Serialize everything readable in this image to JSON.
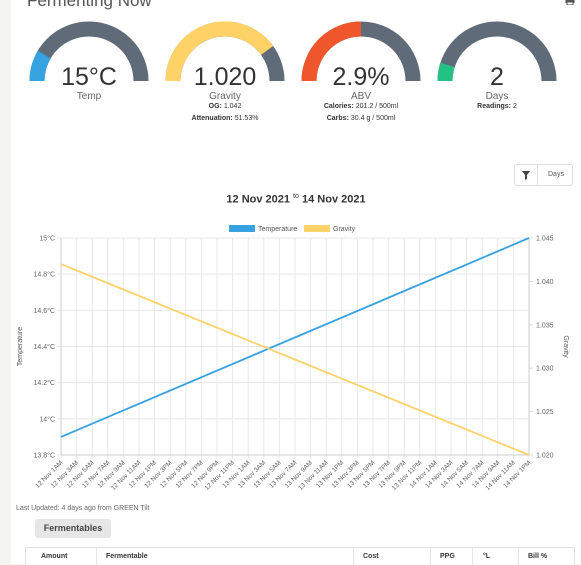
{
  "page": {
    "title": "Fermenting Now"
  },
  "gauges": [
    {
      "value": "15°C",
      "label": "Temp",
      "fraction": 0.17,
      "color": "#36a2e0",
      "track": "#5f6b78"
    },
    {
      "value": "1.020",
      "label": "Gravity",
      "fraction": 0.8,
      "color": "#ffd268",
      "track": "#5f6b78",
      "og_label": "OG:",
      "og": "1.042",
      "attenuation_label": "Attenuation:",
      "attenuation": "51.53%"
    },
    {
      "value": "2.9%",
      "label": "ABV",
      "fraction": 0.5,
      "color": "#f0562c",
      "track": "#5f6b78",
      "calories_label": "Calories:",
      "calories": "201.2 / 500ml",
      "carbs_label": "Carbs:",
      "carbs": "30.4 g / 500ml"
    },
    {
      "value": "2",
      "label": "Days",
      "fraction": 0.1,
      "color": "#23c184",
      "track": "#5f6b78",
      "readings_label": "Readings:",
      "readings": "2"
    }
  ],
  "filter": {
    "label": "Days",
    "icon": "filter-icon"
  },
  "range": {
    "start": "12 Nov 2021",
    "to": "to",
    "end": "14 Nov 2021"
  },
  "chart_data": {
    "type": "line",
    "x": [
      "12 Nov 1AM",
      "12 Nov 3AM",
      "12 Nov 5AM",
      "12 Nov 7AM",
      "12 Nov 9AM",
      "12 Nov 11AM",
      "12 Nov 1PM",
      "12 Nov 3PM",
      "12 Nov 5PM",
      "12 Nov 7PM",
      "12 Nov 9PM",
      "12 Nov 11PM",
      "13 Nov 1AM",
      "13 Nov 3AM",
      "13 Nov 5AM",
      "13 Nov 7AM",
      "13 Nov 9AM",
      "13 Nov 11AM",
      "13 Nov 1PM",
      "13 Nov 3PM",
      "13 Nov 5PM",
      "13 Nov 7PM",
      "13 Nov 9PM",
      "13 Nov 11PM",
      "14 Nov 1AM",
      "14 Nov 3AM",
      "14 Nov 5AM",
      "14 Nov 7AM",
      "14 Nov 9AM",
      "14 Nov 11AM",
      "14 Nov 1PM"
    ],
    "series": [
      {
        "name": "Temperature",
        "color": "#36a2e0",
        "axis": "left",
        "start": 13.9,
        "end": 15.0
      },
      {
        "name": "Gravity",
        "color": "#ffd268",
        "axis": "right",
        "start": 1.042,
        "end": 1.02
      }
    ],
    "y_left": {
      "label": "Temperature",
      "ticks": [
        "15°C",
        "14.8°C",
        "14.6°C",
        "14.4°C",
        "14.2°C",
        "14°C",
        "13.8°C"
      ],
      "min": 13.8,
      "max": 15.0
    },
    "y_right": {
      "label": "Gravity",
      "ticks": [
        "1.045",
        "1.040",
        "1.035",
        "1.030",
        "1.025",
        "1.020"
      ],
      "min": 1.02,
      "max": 1.045
    },
    "legend": "top-center",
    "grid": true
  },
  "footer": {
    "last_updated": "Last Updated: 4 days ago from GREEN Tilt"
  },
  "fermentables": {
    "tab": "Fermentables",
    "columns": [
      "Amount",
      "Fermentable",
      "Cost",
      "PPG",
      "°L",
      "Bill %"
    ]
  }
}
